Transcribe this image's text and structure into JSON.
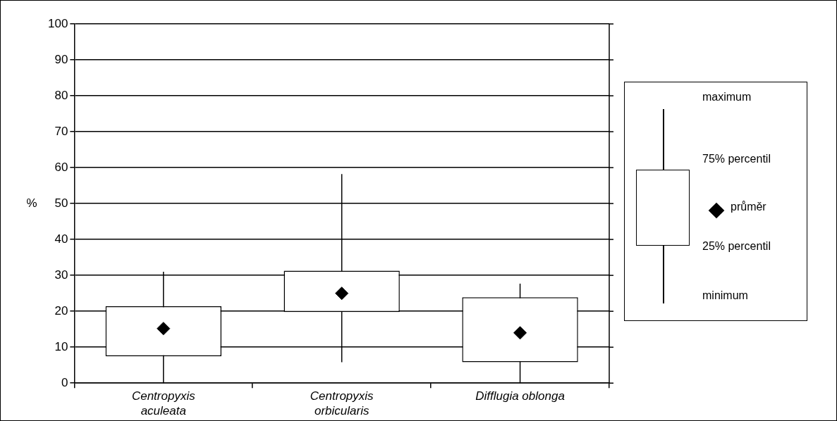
{
  "chart_data": {
    "type": "box",
    "ylabel": "%",
    "categories": [
      "Centropyxis aculeata",
      "Centropyxis orbicularis",
      "Difflugia oblonga"
    ],
    "boxes": [
      {
        "low": 0,
        "q1": 7.5,
        "q3": 21.4,
        "high": 31,
        "mean": 15.2
      },
      {
        "low": 5.8,
        "q1": 19.8,
        "q3": 31.3,
        "high": 58.2,
        "mean": 25
      },
      {
        "low": 0,
        "q1": 5.8,
        "q3": 23.9,
        "high": 27.7,
        "mean": 14
      }
    ],
    "marker": "diamond",
    "ylim": [
      0,
      100
    ],
    "yticks": [
      0,
      10,
      20,
      30,
      40,
      50,
      60,
      70,
      80,
      90,
      100
    ],
    "grid": "y",
    "annotations": [
      "maximum",
      "75% percentil",
      "průměr",
      "25% percentil",
      "minimum"
    ]
  }
}
